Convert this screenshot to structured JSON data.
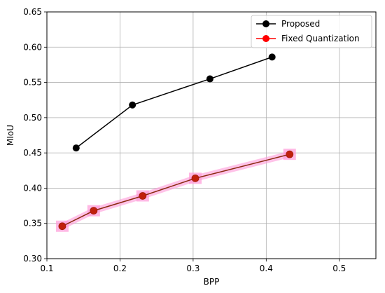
{
  "chart_data": {
    "type": "line",
    "title": "",
    "xlabel": "BPP",
    "ylabel": "MIoU",
    "xlim": [
      0.1,
      0.55
    ],
    "ylim": [
      0.3,
      0.65
    ],
    "x_ticks": [
      "0.1",
      "0.2",
      "0.3",
      "0.4",
      "0.5"
    ],
    "x_tick_values": [
      0.1,
      0.2,
      0.3,
      0.4,
      0.5
    ],
    "y_ticks": [
      "0.30",
      "0.35",
      "0.40",
      "0.45",
      "0.50",
      "0.55",
      "0.60",
      "0.65"
    ],
    "y_tick_values": [
      0.3,
      0.35,
      0.4,
      0.45,
      0.5,
      0.55,
      0.6,
      0.65
    ],
    "grid": true,
    "legend_position": "top-right",
    "series": [
      {
        "name": "Proposed",
        "color": "#000000",
        "marker_color": "#000000",
        "x": [
          0.14,
          0.217,
          0.323,
          0.408
        ],
        "y": [
          0.457,
          0.518,
          0.555,
          0.586
        ]
      },
      {
        "name": "Fixed Quantization",
        "color": "#ff0000",
        "marker_color": "#ff0000",
        "line_color": "#8b2a10",
        "highlight_color": "#ff9ad8",
        "x": [
          0.121,
          0.164,
          0.231,
          0.303,
          0.432
        ],
        "y": [
          0.346,
          0.368,
          0.389,
          0.414,
          0.448
        ]
      }
    ]
  }
}
